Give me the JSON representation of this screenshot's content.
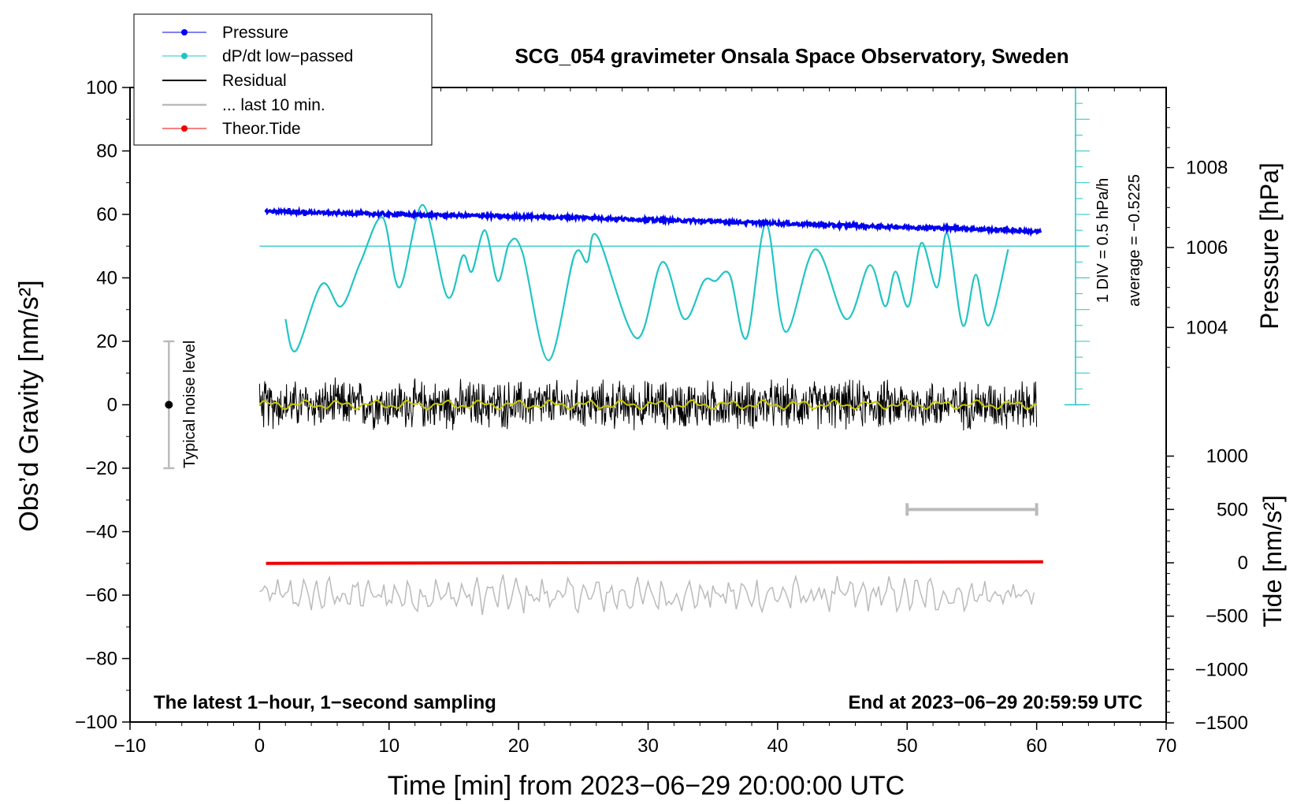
{
  "chart_data": {
    "type": "line",
    "title": "SCG_054 gravimeter Onsala Space Observatory, Sweden",
    "xlabel": "Time [min] from 2023−06−29 20:00:00 UTC",
    "ylabel": "Obs’d Gravity [nm/s²]",
    "xlim": [
      -10,
      70
    ],
    "ylim": [
      -100,
      100
    ],
    "x_ticks": [
      -10,
      0,
      10,
      20,
      30,
      40,
      50,
      60,
      70
    ],
    "x_tick_labels": [
      "−10",
      "0",
      "10",
      "20",
      "30",
      "40",
      "50",
      "60",
      "70"
    ],
    "y_ticks": [
      100,
      80,
      60,
      40,
      20,
      0,
      -20,
      -40,
      -60,
      -80,
      -100
    ],
    "y_tick_labels": [
      "100",
      "80",
      "60",
      "40",
      "20",
      "0",
      "−20",
      "−40",
      "−60",
      "−80",
      "−100"
    ],
    "pressure_axis": {
      "label": "Pressure [hPa]",
      "ticks": [
        1008,
        1006,
        1004
      ],
      "tick_labels": [
        "1008",
        "1006",
        "1004"
      ]
    },
    "tide_axis": {
      "label": "Tide [nm/s²]",
      "ticks": [
        1000,
        500,
        0,
        -500,
        -1000,
        -1500
      ],
      "tick_labels": [
        "1000",
        "500",
        "0",
        "−500",
        "−1000",
        "−1500"
      ]
    },
    "dpdt_scale": {
      "div_label": "1 DIV = 0.5 hPa/h",
      "average_label": "average = −0.5225"
    },
    "noise_label": "Typical noise level",
    "bottom_left_note": "The latest 1−hour, 1−second sampling",
    "bottom_right_note": "End at 2023−06−29 20:59:59 UTC",
    "legend": [
      {
        "label": "Pressure",
        "color": "#0000ee",
        "marker": true
      },
      {
        "label": "dP/dt low−passed",
        "color": "#22c4c4",
        "marker": true
      },
      {
        "label": "Residual",
        "color": "#000000",
        "marker": false
      },
      {
        "label": "... last 10 min.",
        "color": "#bbbbbb",
        "marker": false
      },
      {
        "label": "Theor.Tide",
        "color": "#ee0000",
        "marker": true
      }
    ],
    "series": [
      {
        "name": "Pressure",
        "color": "#0000ee",
        "x": [
          0.5,
          5,
          10,
          15,
          20,
          25,
          30,
          35,
          40,
          45,
          50,
          55,
          60.3
        ],
        "values": [
          61,
          60.5,
          60,
          59.7,
          59.3,
          59,
          58.3,
          57.8,
          57.2,
          56.5,
          56,
          55.5,
          54.5
        ]
      },
      {
        "name": "dP/dt low-passed",
        "color": "#22c4c4",
        "x": [
          2,
          2.8,
          4.8,
          6.3,
          7.8,
          9.5,
          10.8,
          12.6,
          14.5,
          15.7,
          16.4,
          17.4,
          18.4,
          19.3,
          20.3,
          22.3,
          24.3,
          25.3,
          26.1,
          29.1,
          31.1,
          32.8,
          34.3,
          35.2,
          36.3,
          37.6,
          39.1,
          40.6,
          42.9,
          45.3,
          47.1,
          48.3,
          49.1,
          50.1,
          51.1,
          52.3,
          53.1,
          54.3,
          55.3,
          56.3,
          57.8
        ],
        "values": [
          27,
          17,
          38,
          31,
          45,
          59,
          37,
          63,
          34,
          47,
          42,
          55,
          39,
          51,
          48,
          14,
          47,
          45,
          53,
          21,
          45,
          27,
          39,
          39,
          41,
          21,
          57,
          23,
          49,
          27,
          44,
          31,
          42,
          31,
          51,
          37,
          54,
          25,
          41,
          25,
          49
        ]
      },
      {
        "name": "Residual",
        "color": "#000000",
        "x": [
          0,
          60
        ],
        "values": [
          0,
          0
        ],
        "noise_amplitude": 6,
        "max": 11,
        "min": -13
      },
      {
        "name": "Residual smoothed",
        "color": "#c8c800",
        "x": [
          0,
          60
        ],
        "values": [
          0,
          0
        ]
      },
      {
        "name": "... last 10 min.",
        "color": "#bbbbbb",
        "x": [
          0,
          60
        ],
        "values": [
          -60,
          -60
        ],
        "noise_amplitude": 5,
        "max": -51,
        "min": -70
      },
      {
        "name": "Theor.Tide",
        "color": "#ee0000",
        "x": [
          0.5,
          60.5
        ],
        "values": [
          -50,
          -49.5
        ]
      }
    ],
    "noise_bar": {
      "x": -7,
      "center": 0,
      "low": -20,
      "high": 20
    },
    "time_bar": {
      "x_start": 50,
      "x_end": 60,
      "y": -33
    },
    "dpdt_reference_y": 50
  }
}
